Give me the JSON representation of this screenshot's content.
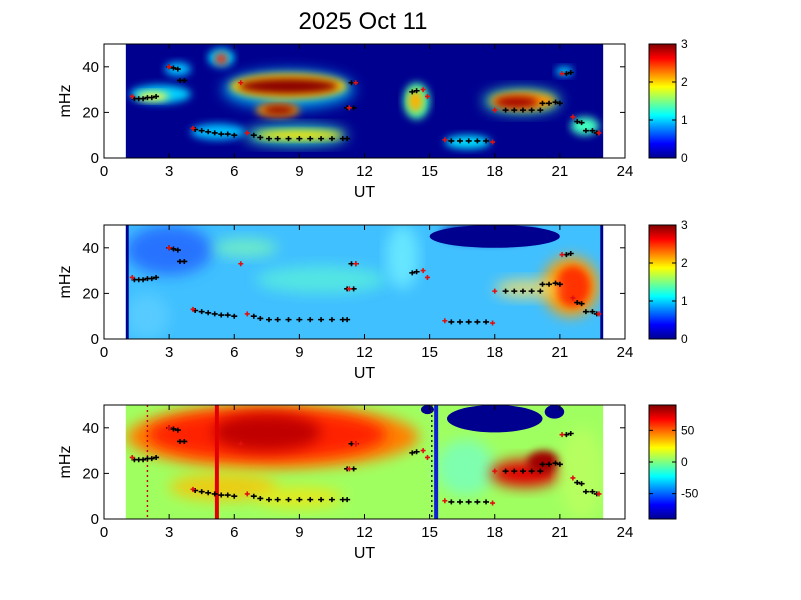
{
  "title": "2025 Oct 11",
  "chart_data": [
    {
      "type": "heatmap",
      "xlabel": "UT",
      "ylabel": "mHz",
      "xlim": [
        0,
        24
      ],
      "ylim": [
        0,
        50
      ],
      "xticks": [
        "0",
        "3",
        "6",
        "9",
        "12",
        "15",
        "18",
        "21",
        "24"
      ],
      "yticks": [
        "0",
        "20",
        "40"
      ],
      "data_range": [
        1,
        23
      ],
      "colorbar": {
        "ticks": [
          "0",
          "1",
          "2",
          "3"
        ],
        "range": [
          0,
          3
        ]
      }
    },
    {
      "type": "heatmap",
      "xlabel": "UT",
      "ylabel": "mHz",
      "xlim": [
        0,
        24
      ],
      "ylim": [
        0,
        50
      ],
      "xticks": [
        "0",
        "3",
        "6",
        "9",
        "12",
        "15",
        "18",
        "21",
        "24"
      ],
      "yticks": [
        "0",
        "20",
        "40"
      ],
      "data_range": [
        1,
        23
      ],
      "colorbar": {
        "ticks": [
          "0",
          "1",
          "2",
          "3"
        ],
        "range": [
          0,
          3
        ]
      }
    },
    {
      "type": "heatmap",
      "xlabel": "UT",
      "ylabel": "mHz",
      "xlim": [
        0,
        24
      ],
      "ylim": [
        0,
        50
      ],
      "xticks": [
        "0",
        "3",
        "6",
        "9",
        "12",
        "15",
        "18",
        "21",
        "24"
      ],
      "yticks": [
        "0",
        "20",
        "40"
      ],
      "data_range": [
        1,
        23
      ],
      "colorbar": {
        "ticks": [
          "50",
          "0",
          "-50"
        ],
        "range": [
          -90,
          90
        ]
      },
      "vertical_markers": [
        {
          "x": 5.2,
          "color": "#e00000",
          "style": "solid"
        },
        {
          "x": 15.3,
          "color": "#1020d0",
          "style": "solid"
        },
        {
          "x": 2.0,
          "color": "#c00000",
          "style": "dotted"
        },
        {
          "x": 15.1,
          "color": "#202020",
          "style": "dotted"
        }
      ]
    }
  ],
  "tracks": [
    {
      "x": [
        1.4,
        1.6,
        1.8,
        2.0,
        2.2,
        2.4
      ],
      "y": [
        26,
        26,
        26,
        26.5,
        26.5,
        27
      ]
    },
    {
      "x": [
        3.0,
        3.2,
        3.4
      ],
      "y": [
        40,
        39.5,
        39
      ]
    },
    {
      "x": [
        3.5,
        3.7
      ],
      "y": [
        34,
        34
      ]
    },
    {
      "x": [
        4.2,
        4.5,
        4.8,
        5.1,
        5.4,
        5.7,
        6.0
      ],
      "y": [
        12.5,
        12,
        11.5,
        11,
        10.5,
        10.5,
        10
      ]
    },
    {
      "x": [
        6.9,
        7.2,
        7.6,
        8.0,
        8.5,
        9.0,
        9.5,
        10.0,
        10.5,
        11.0,
        11.2
      ],
      "y": [
        10,
        9,
        8.5,
        8.5,
        8.5,
        8.5,
        8.5,
        8.5,
        8.5,
        8.5,
        8.5
      ]
    },
    {
      "x": [
        11.2,
        11.5
      ],
      "y": [
        22,
        22
      ]
    },
    {
      "x": [
        11.4,
        11.6
      ],
      "y": [
        33,
        33
      ]
    },
    {
      "x": [
        14.2,
        14.4
      ],
      "y": [
        29,
        29.5
      ]
    },
    {
      "x": [
        16.0,
        16.4,
        16.8,
        17.2,
        17.6
      ],
      "y": [
        7.5,
        7.5,
        7.5,
        7.5,
        7.5
      ]
    },
    {
      "x": [
        18.5,
        18.9,
        19.3,
        19.7,
        20.1
      ],
      "y": [
        21,
        21,
        21,
        21,
        21
      ]
    },
    {
      "x": [
        20.2,
        20.5,
        20.8,
        21.0
      ],
      "y": [
        24,
        24,
        24.5,
        24
      ]
    },
    {
      "x": [
        21.3,
        21.5
      ],
      "y": [
        37,
        37.5
      ]
    },
    {
      "x": [
        21.8,
        22.0
      ],
      "y": [
        16,
        15.5
      ]
    },
    {
      "x": [
        22.2,
        22.5,
        22.7
      ],
      "y": [
        12,
        12,
        11
      ]
    }
  ],
  "red_points": [
    {
      "x": 1.3,
      "y": 27
    },
    {
      "x": 3.0,
      "y": 40
    },
    {
      "x": 4.1,
      "y": 13
    },
    {
      "x": 6.3,
      "y": 33
    },
    {
      "x": 6.6,
      "y": 11
    },
    {
      "x": 11.3,
      "y": 22
    },
    {
      "x": 11.6,
      "y": 33
    },
    {
      "x": 14.7,
      "y": 30
    },
    {
      "x": 14.9,
      "y": 27
    },
    {
      "x": 17.9,
      "y": 7
    },
    {
      "x": 18.0,
      "y": 21
    },
    {
      "x": 21.1,
      "y": 37
    },
    {
      "x": 21.6,
      "y": 18
    },
    {
      "x": 22.8,
      "y": 11
    },
    {
      "x": 15.7,
      "y": 8
    }
  ],
  "colors": {
    "outside": "#ffffff",
    "tracks": "#000000",
    "red_points": "#e01010"
  }
}
